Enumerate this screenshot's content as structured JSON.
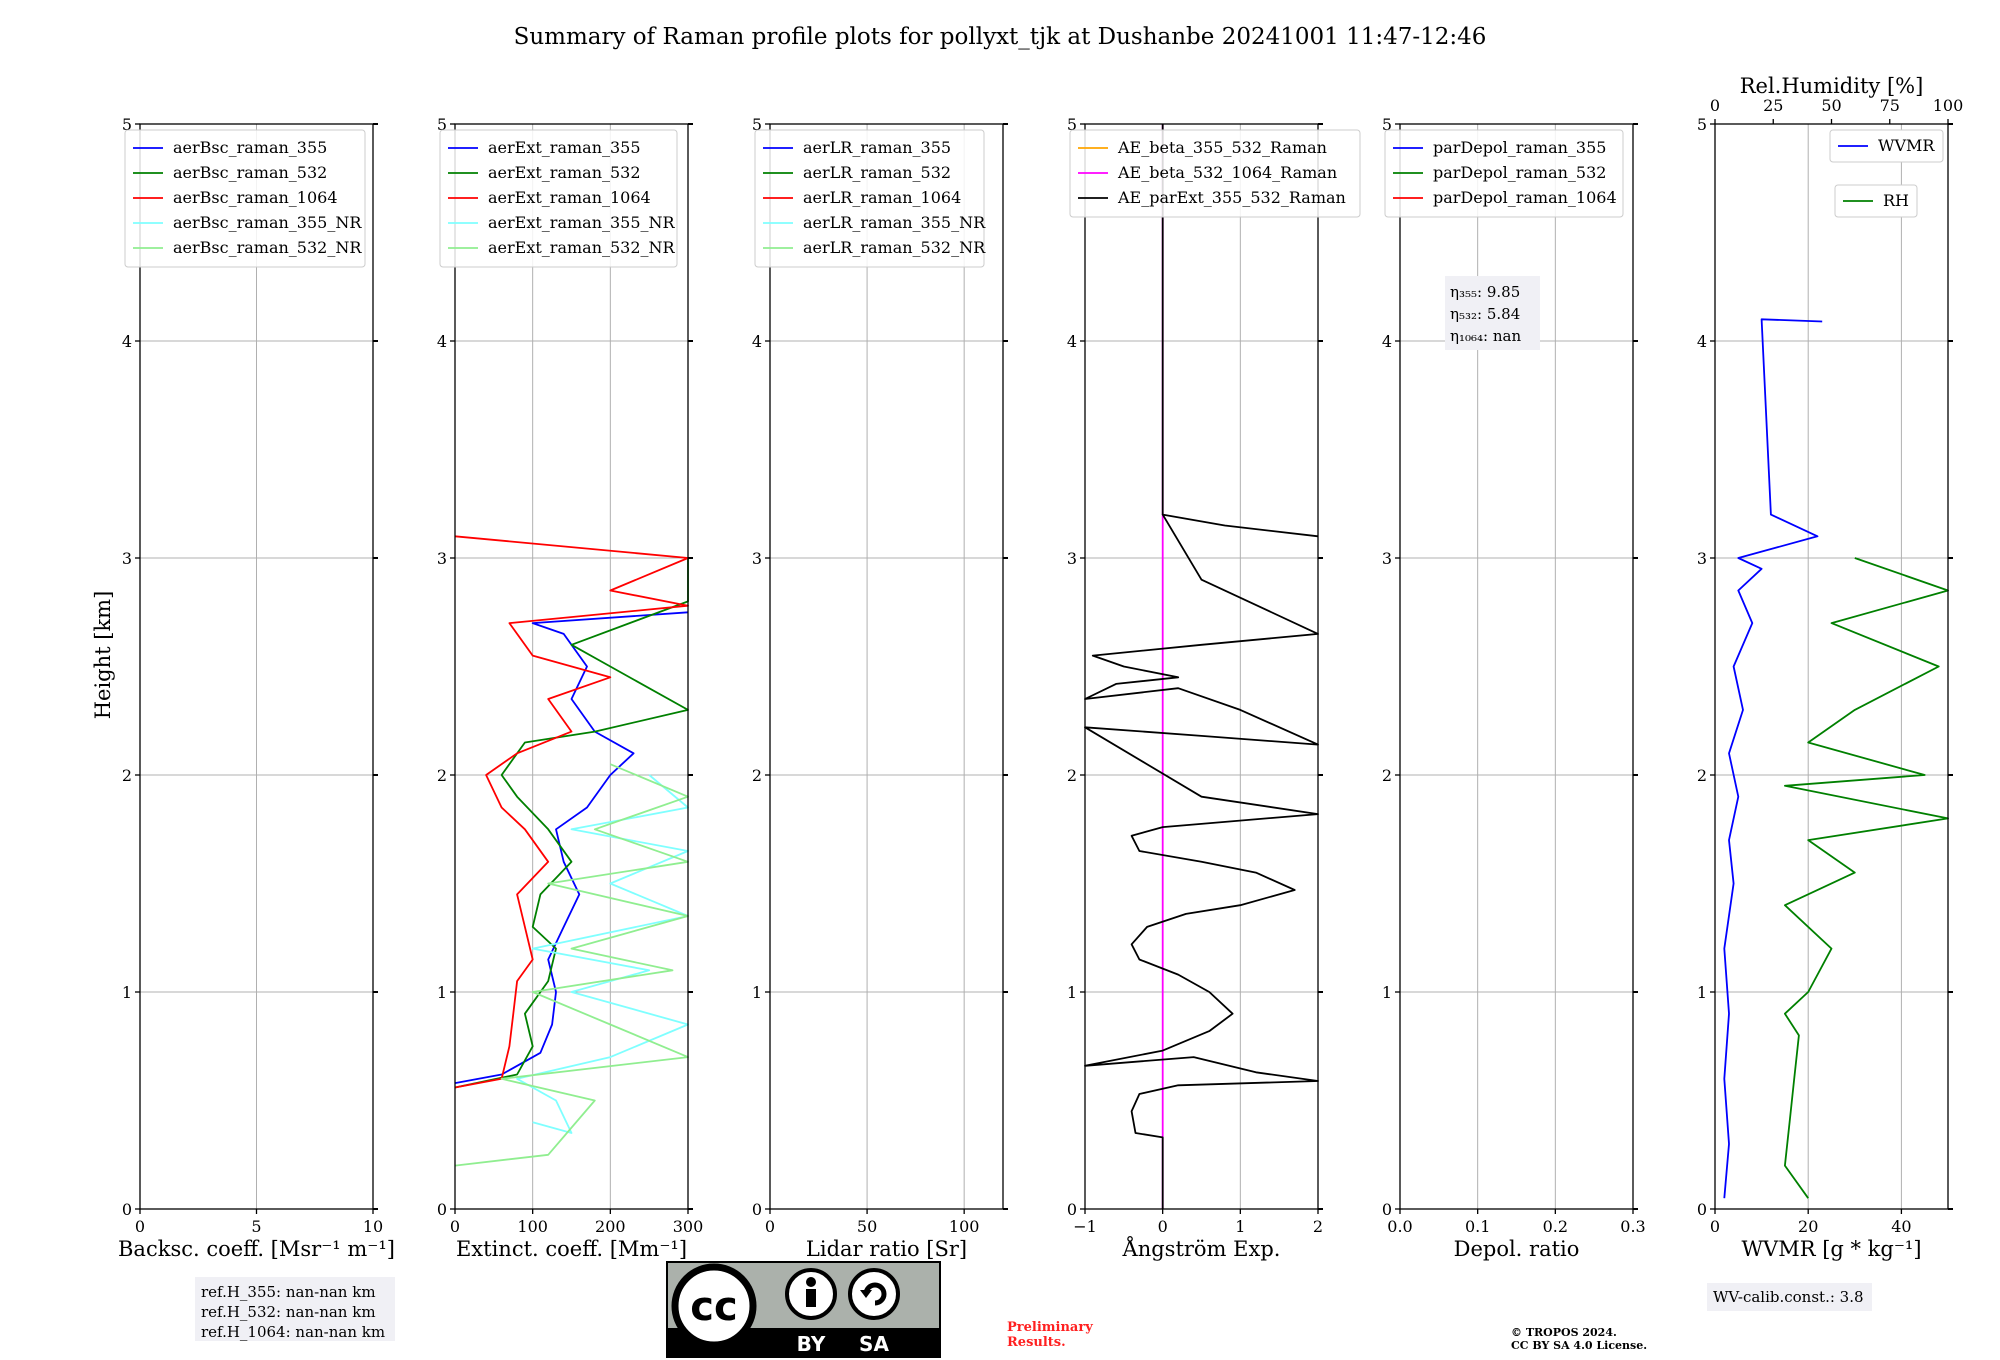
{
  "title": "Summary of Raman profile plots for pollyxt_tjk at Dushanbe 20241001 11:47-12:46",
  "ylabel": "Height [km]",
  "colors": {
    "blue": "#0000ff",
    "green": "#008000",
    "red": "#ff0000",
    "cyan": "#7fffff",
    "lightgreen": "#90ee90",
    "orange": "#ffa500",
    "magenta": "#ff00ff",
    "black": "#000000"
  },
  "chart_data": [
    {
      "type": "line",
      "xlabel": "Backsc. coeff. [Msr$^{-1}$ m$^{-1}$]",
      "xlabel_display": "Backsc. coeff. [Msr⁻¹ m⁻¹]",
      "xlim": [
        0,
        10
      ],
      "xticks": [
        "0",
        "5",
        "10"
      ],
      "ylim": [
        0,
        5
      ],
      "yticks": [
        "0",
        "1",
        "2",
        "3",
        "4",
        "5"
      ],
      "legend": [
        "aerBsc_raman_355",
        "aerBsc_raman_532",
        "aerBsc_raman_1064",
        "aerBsc_raman_355_NR",
        "aerBsc_raman_532_NR"
      ],
      "legend_colors": [
        "blue",
        "green",
        "red",
        "cyan",
        "lightgreen"
      ],
      "series": []
    },
    {
      "type": "line",
      "xlabel_display": "Extinct. coeff. [Mm⁻¹]",
      "xlim": [
        0,
        300
      ],
      "xticks": [
        "0",
        "100",
        "200",
        "300"
      ],
      "ylim": [
        0,
        5
      ],
      "yticks": [
        "0",
        "1",
        "2",
        "3",
        "4",
        "5"
      ],
      "legend": [
        "aerExt_raman_355",
        "aerExt_raman_532",
        "aerExt_raman_1064",
        "aerExt_raman_355_NR",
        "aerExt_raman_532_NR"
      ],
      "legend_colors": [
        "blue",
        "green",
        "red",
        "cyan",
        "lightgreen"
      ],
      "series": [
        {
          "color": "blue",
          "points": [
            [
              0,
              0.58
            ],
            [
              60,
              0.62
            ],
            [
              110,
              0.72
            ],
            [
              125,
              0.85
            ],
            [
              130,
              1.0
            ],
            [
              120,
              1.15
            ],
            [
              140,
              1.3
            ],
            [
              160,
              1.45
            ],
            [
              140,
              1.6
            ],
            [
              130,
              1.75
            ],
            [
              170,
              1.85
            ],
            [
              200,
              2.0
            ],
            [
              230,
              2.1
            ],
            [
              180,
              2.2
            ],
            [
              150,
              2.35
            ],
            [
              170,
              2.5
            ],
            [
              140,
              2.65
            ],
            [
              100,
              2.7
            ],
            [
              300,
              2.75
            ]
          ]
        },
        {
          "color": "green",
          "points": [
            [
              0,
              0.56
            ],
            [
              80,
              0.62
            ],
            [
              100,
              0.75
            ],
            [
              90,
              0.9
            ],
            [
              120,
              1.05
            ],
            [
              130,
              1.2
            ],
            [
              100,
              1.3
            ],
            [
              110,
              1.45
            ],
            [
              150,
              1.6
            ],
            [
              120,
              1.75
            ],
            [
              80,
              1.9
            ],
            [
              60,
              2.0
            ],
            [
              90,
              2.15
            ],
            [
              180,
              2.2
            ],
            [
              300,
              2.3
            ],
            [
              200,
              2.5
            ],
            [
              150,
              2.6
            ],
            [
              300,
              2.8
            ],
            [
              300,
              3.0
            ]
          ]
        },
        {
          "color": "red",
          "points": [
            [
              0,
              0.56
            ],
            [
              60,
              0.6
            ],
            [
              70,
              0.75
            ],
            [
              75,
              0.9
            ],
            [
              80,
              1.05
            ],
            [
              100,
              1.15
            ],
            [
              90,
              1.3
            ],
            [
              80,
              1.45
            ],
            [
              120,
              1.6
            ],
            [
              90,
              1.75
            ],
            [
              60,
              1.85
            ],
            [
              40,
              2.0
            ],
            [
              80,
              2.1
            ],
            [
              150,
              2.2
            ],
            [
              120,
              2.35
            ],
            [
              200,
              2.45
            ],
            [
              100,
              2.55
            ],
            [
              70,
              2.7
            ],
            [
              300,
              2.78
            ],
            [
              200,
              2.85
            ],
            [
              300,
              3.0
            ],
            [
              0,
              3.1
            ]
          ]
        },
        {
          "color": "cyan",
          "points": [
            [
              100,
              0.4
            ],
            [
              150,
              0.35
            ],
            [
              130,
              0.5
            ],
            [
              80,
              0.6
            ],
            [
              200,
              0.7
            ],
            [
              300,
              0.85
            ],
            [
              150,
              1.0
            ],
            [
              250,
              1.1
            ],
            [
              100,
              1.2
            ],
            [
              300,
              1.35
            ],
            [
              200,
              1.5
            ],
            [
              300,
              1.65
            ],
            [
              150,
              1.75
            ],
            [
              300,
              1.85
            ],
            [
              250,
              2.0
            ]
          ]
        },
        {
          "color": "lightgreen",
          "points": [
            [
              0,
              0.2
            ],
            [
              120,
              0.25
            ],
            [
              180,
              0.5
            ],
            [
              60,
              0.6
            ],
            [
              300,
              0.7
            ],
            [
              200,
              0.85
            ],
            [
              100,
              1.0
            ],
            [
              280,
              1.1
            ],
            [
              150,
              1.2
            ],
            [
              300,
              1.35
            ],
            [
              120,
              1.5
            ],
            [
              300,
              1.6
            ],
            [
              180,
              1.75
            ],
            [
              300,
              1.9
            ],
            [
              200,
              2.05
            ]
          ]
        }
      ]
    },
    {
      "type": "line",
      "xlabel_display": "Lidar ratio [Sr]",
      "xlim": [
        0,
        120
      ],
      "xticks": [
        "0",
        "50",
        "100"
      ],
      "ylim": [
        0,
        5
      ],
      "yticks": [
        "0",
        "1",
        "2",
        "3",
        "4",
        "5"
      ],
      "legend": [
        "aerLR_raman_355",
        "aerLR_raman_532",
        "aerLR_raman_1064",
        "aerLR_raman_355_NR",
        "aerLR_raman_532_NR"
      ],
      "legend_colors": [
        "blue",
        "green",
        "red",
        "cyan",
        "lightgreen"
      ],
      "series": []
    },
    {
      "type": "line",
      "xlabel_display": "Ångström Exp.",
      "xlim": [
        -1,
        2
      ],
      "xticks": [
        "−1",
        "0",
        "1",
        "2"
      ],
      "ylim": [
        0,
        5
      ],
      "yticks": [
        "0",
        "1",
        "2",
        "3",
        "4",
        "5"
      ],
      "legend": [
        "AE_beta_355_532_Raman",
        "AE_beta_532_1064_Raman",
        "AE_parExt_355_532_Raman"
      ],
      "legend_colors": [
        "orange",
        "magenta",
        "black"
      ],
      "series": [
        {
          "color": "magenta",
          "points": [
            [
              0,
              0
            ],
            [
              0,
              5
            ]
          ]
        },
        {
          "color": "black",
          "points": [
            [
              0,
              0
            ],
            [
              0,
              0.33
            ],
            [
              -0.35,
              0.35
            ],
            [
              -0.4,
              0.45
            ],
            [
              -0.3,
              0.53
            ],
            [
              0.2,
              0.57
            ],
            [
              2,
              0.59
            ],
            [
              1.2,
              0.63
            ],
            [
              0.4,
              0.7
            ],
            [
              -1,
              0.66
            ],
            [
              0,
              0.73
            ],
            [
              0.6,
              0.82
            ],
            [
              0.9,
              0.9
            ],
            [
              0.6,
              1.0
            ],
            [
              0.2,
              1.08
            ],
            [
              -0.3,
              1.15
            ],
            [
              -0.4,
              1.22
            ],
            [
              -0.2,
              1.3
            ],
            [
              0.3,
              1.36
            ],
            [
              1.0,
              1.4
            ],
            [
              1.7,
              1.47
            ],
            [
              1.2,
              1.55
            ],
            [
              0.5,
              1.6
            ],
            [
              -0.3,
              1.65
            ],
            [
              -0.4,
              1.72
            ],
            [
              0,
              1.76
            ],
            [
              2,
              1.82
            ],
            [
              0.5,
              1.9
            ],
            [
              -1,
              2.22
            ],
            [
              0.5,
              2.18
            ],
            [
              2,
              2.14
            ],
            [
              1.0,
              2.3
            ],
            [
              0.2,
              2.4
            ],
            [
              -1,
              2.35
            ],
            [
              -0.6,
              2.42
            ],
            [
              0.2,
              2.45
            ],
            [
              -0.5,
              2.5
            ],
            [
              -0.9,
              2.55
            ],
            [
              0.5,
              2.6
            ],
            [
              2,
              2.65
            ],
            [
              0.5,
              2.9
            ],
            [
              0,
              3.2
            ],
            [
              0.8,
              3.15
            ],
            [
              2,
              3.1
            ]
          ]
        },
        {
          "color": "black",
          "points": [
            [
              0,
              3.2
            ],
            [
              0,
              5
            ]
          ]
        }
      ]
    },
    {
      "type": "line",
      "xlabel_display": "Depol. ratio",
      "xlim": [
        0,
        0.3
      ],
      "xticks": [
        "0.0",
        "0.1",
        "0.2",
        "0.3"
      ],
      "ylim": [
        0,
        5
      ],
      "yticks": [
        "0",
        "1",
        "2",
        "3",
        "4",
        "5"
      ],
      "legend": [
        "parDepol_raman_355",
        "parDepol_raman_532",
        "parDepol_raman_1064"
      ],
      "legend_colors": [
        "blue",
        "green",
        "red"
      ],
      "annotation": [
        "η₃₅₅: 9.85",
        "η₅₃₂: 5.84",
        "η₁₀₆₄: nan"
      ],
      "series": []
    },
    {
      "type": "line",
      "xlabel_display": "WVMR [g * kg⁻¹]",
      "xlim": [
        0,
        50
      ],
      "xticks": [
        "0",
        "20",
        "40"
      ],
      "top_xlabel": "Rel.Humidity [%]",
      "top_xlim": [
        0,
        100
      ],
      "top_xticks": [
        "0",
        "25",
        "50",
        "75",
        "100"
      ],
      "ylim": [
        0,
        5
      ],
      "yticks": [
        "0",
        "1",
        "2",
        "3",
        "4",
        "5"
      ],
      "legend": [
        "WVMR",
        "RH"
      ],
      "legend_colors": [
        "blue",
        "green"
      ],
      "series": [
        {
          "color": "blue",
          "points": [
            [
              2,
              0.05
            ],
            [
              3,
              0.3
            ],
            [
              2,
              0.6
            ],
            [
              3,
              0.9
            ],
            [
              2,
              1.2
            ],
            [
              4,
              1.5
            ],
            [
              3,
              1.7
            ],
            [
              5,
              1.9
            ],
            [
              3,
              2.1
            ],
            [
              6,
              2.3
            ],
            [
              4,
              2.5
            ],
            [
              8,
              2.7
            ],
            [
              5,
              2.85
            ],
            [
              10,
              2.95
            ],
            [
              5,
              3.0
            ],
            [
              22,
              3.1
            ],
            [
              12,
              3.2
            ],
            [
              10,
              4.1
            ],
            [
              23,
              4.09
            ]
          ]
        },
        {
          "color": "green",
          "points": [
            [
              20,
              0.05
            ],
            [
              15,
              0.2
            ],
            [
              16,
              0.4
            ],
            [
              17,
              0.6
            ],
            [
              18,
              0.8
            ],
            [
              15,
              0.9
            ],
            [
              20,
              1.0
            ],
            [
              25,
              1.2
            ],
            [
              15,
              1.4
            ],
            [
              30,
              1.55
            ],
            [
              20,
              1.7
            ],
            [
              50,
              1.8
            ],
            [
              15,
              1.95
            ],
            [
              45,
              2.0
            ],
            [
              20,
              2.15
            ],
            [
              30,
              2.3
            ],
            [
              48,
              2.5
            ],
            [
              25,
              2.7
            ],
            [
              50,
              2.85
            ],
            [
              30,
              3.0
            ]
          ]
        }
      ]
    }
  ],
  "notes": {
    "refH": [
      "ref.H_355: nan-nan km",
      "ref.H_532: nan-nan km",
      "ref.H_1064: nan-nan km"
    ],
    "wv_calib": "WV-calib.const.: 3.8",
    "preliminary": [
      "Preliminary",
      "Results."
    ],
    "copyright": [
      "© TROPOS 2024.",
      "CC BY SA 4.0 License."
    ],
    "license_badge": [
      "cc",
      "BY",
      "SA"
    ]
  }
}
